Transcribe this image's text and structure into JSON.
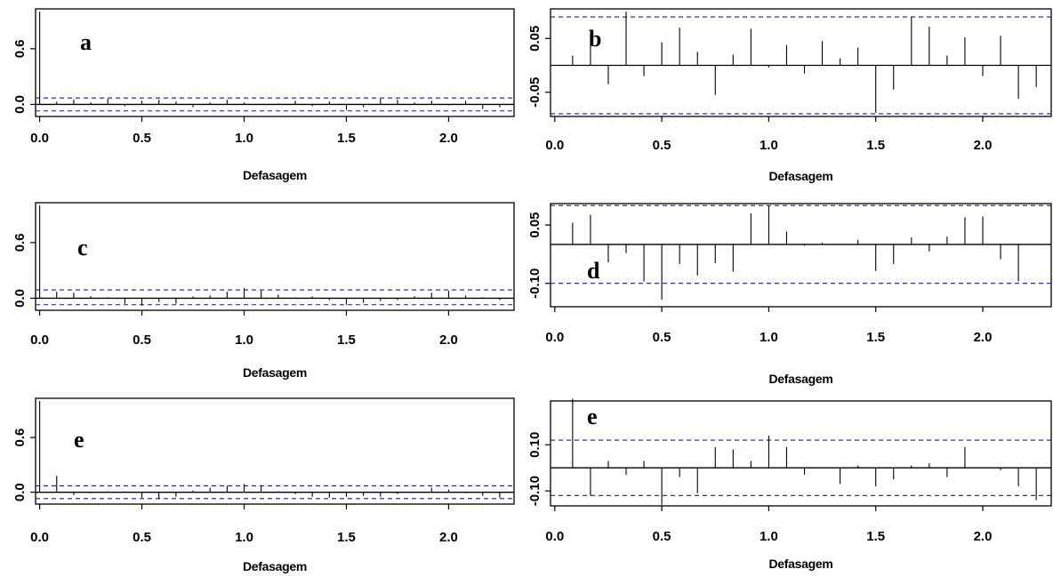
{
  "chart_data": [
    {
      "type": "bar",
      "panel_letter": "a",
      "xlabel": "Defasagem",
      "xlim": [
        -0.02,
        2.32
      ],
      "ylim": [
        -0.13,
        1.03
      ],
      "xticks": [
        0.0,
        0.5,
        1.0,
        1.5,
        2.0
      ],
      "xtick_labels": [
        "0.0",
        "0.5",
        "1.0",
        "1.5",
        "2.0"
      ],
      "yticks": [
        0.0,
        0.6
      ],
      "ytick_labels": [
        "0.0",
        "0.6"
      ],
      "conf_band": [
        0.07,
        -0.07
      ],
      "x": [
        0,
        0.0833,
        0.1667,
        0.25,
        0.3333,
        0.4167,
        0.5,
        0.5833,
        0.6667,
        0.75,
        0.8333,
        0.9167,
        1.0,
        1.0833,
        1.1667,
        1.25,
        1.3333,
        1.4167,
        1.5,
        1.5833,
        1.6667,
        1.75,
        1.8333,
        1.9167,
        2.0,
        2.0833,
        2.1667,
        2.25
      ],
      "values": [
        1.0,
        0.03,
        0.05,
        0.02,
        0.06,
        -0.02,
        0.04,
        0.05,
        0.03,
        -0.03,
        0.02,
        0.05,
        0.02,
        0.0,
        0.01,
        0.04,
        -0.02,
        0.03,
        -0.06,
        -0.03,
        0.06,
        0.05,
        0.02,
        0.04,
        -0.01,
        0.04,
        -0.05,
        -0.03
      ]
    },
    {
      "type": "bar",
      "panel_letter": "b",
      "xlabel": "Defasagem",
      "xlim": [
        -0.02,
        2.32
      ],
      "ylim": [
        -0.095,
        0.105
      ],
      "xticks": [
        0.0,
        0.5,
        1.0,
        1.5,
        2.0
      ],
      "xtick_labels": [
        "0.0",
        "0.5",
        "1.0",
        "1.5",
        "2.0"
      ],
      "yticks": [
        -0.05,
        0.05
      ],
      "ytick_labels": [
        "-0.05",
        "0.05"
      ],
      "conf_band": [
        0.09,
        -0.09
      ],
      "x": [
        0.0833,
        0.1667,
        0.25,
        0.3333,
        0.4167,
        0.5,
        0.5833,
        0.6667,
        0.75,
        0.8333,
        0.9167,
        1.0,
        1.0833,
        1.1667,
        1.25,
        1.3333,
        1.4167,
        1.5,
        1.5833,
        1.6667,
        1.75,
        1.8333,
        1.9167,
        2.0,
        2.0833,
        2.1667,
        2.25
      ],
      "values": [
        0.018,
        0.057,
        -0.035,
        0.1,
        -0.02,
        0.043,
        0.07,
        0.025,
        -0.055,
        0.02,
        0.068,
        -0.004,
        0.038,
        -0.015,
        0.045,
        0.013,
        0.033,
        -0.088,
        -0.045,
        0.09,
        0.072,
        0.018,
        0.052,
        -0.02,
        0.055,
        -0.062,
        -0.04
      ]
    },
    {
      "type": "bar",
      "panel_letter": "c",
      "xlabel": "Defasagem",
      "xlim": [
        -0.02,
        2.32
      ],
      "ylim": [
        -0.13,
        1.03
      ],
      "xticks": [
        0.0,
        0.5,
        1.0,
        1.5,
        2.0
      ],
      "xtick_labels": [
        "0.0",
        "0.5",
        "1.0",
        "1.5",
        "2.0"
      ],
      "yticks": [
        0.0,
        0.6
      ],
      "ytick_labels": [
        "0.0",
        "0.6"
      ],
      "conf_band": [
        0.09,
        -0.07
      ],
      "x": [
        0,
        0.0833,
        0.1667,
        0.25,
        0.3333,
        0.4167,
        0.5,
        0.5833,
        0.6667,
        0.75,
        0.8333,
        0.9167,
        1.0,
        1.0833,
        1.1667,
        1.25,
        1.3333,
        1.4167,
        1.5,
        1.5833,
        1.6667,
        1.75,
        1.8333,
        1.9167,
        2.0,
        2.0833,
        2.1667,
        2.25
      ],
      "values": [
        1.0,
        0.07,
        0.06,
        0.02,
        0.01,
        -0.06,
        -0.08,
        -0.04,
        -0.06,
        0.02,
        0.03,
        0.07,
        0.11,
        0.08,
        0.04,
        0.01,
        0.02,
        -0.02,
        -0.07,
        -0.05,
        -0.03,
        -0.02,
        0.02,
        0.06,
        0.08,
        0.03,
        0.01,
        -0.02
      ]
    },
    {
      "type": "bar",
      "panel_letter": "d",
      "xlabel": "Defasagem",
      "xlim": [
        -0.02,
        2.32
      ],
      "ylim": [
        -0.16,
        0.105
      ],
      "xticks": [
        0.0,
        0.5,
        1.0,
        1.5,
        2.0
      ],
      "xtick_labels": [
        "0.0",
        "0.5",
        "1.0",
        "1.5",
        "2.0"
      ],
      "yticks": [
        -0.1,
        0.05
      ],
      "ytick_labels": [
        "-0.10",
        "0.05"
      ],
      "conf_band": [
        0.1,
        -0.1
      ],
      "x": [
        0.0833,
        0.1667,
        0.25,
        0.3333,
        0.4167,
        0.5,
        0.5833,
        0.6667,
        0.75,
        0.8333,
        0.9167,
        1.0,
        1.0833,
        1.1667,
        1.25,
        1.3333,
        1.4167,
        1.5,
        1.5833,
        1.6667,
        1.75,
        1.8333,
        1.9167,
        2.0,
        2.0833,
        2.1667
      ],
      "values": [
        0.056,
        0.076,
        -0.046,
        -0.022,
        -0.095,
        -0.142,
        -0.05,
        -0.08,
        -0.048,
        -0.07,
        0.08,
        0.1,
        0.033,
        -0.003,
        0.004,
        0.0,
        0.012,
        -0.068,
        -0.05,
        0.018,
        -0.018,
        0.02,
        0.07,
        0.072,
        -0.038,
        -0.095
      ]
    },
    {
      "type": "bar",
      "panel_letter": "e",
      "xlabel": "Defasagem",
      "xlim": [
        -0.02,
        2.32
      ],
      "ylim": [
        -0.13,
        1.03
      ],
      "xticks": [
        0.0,
        0.5,
        1.0,
        1.5,
        2.0
      ],
      "xtick_labels": [
        "0.0",
        "0.5",
        "1.0",
        "1.5",
        "2.0"
      ],
      "yticks": [
        0.0,
        0.6
      ],
      "ytick_labels": [
        "0.0",
        "0.6"
      ],
      "conf_band": [
        0.07,
        -0.07
      ],
      "x": [
        0,
        0.0833,
        0.1667,
        0.25,
        0.3333,
        0.4167,
        0.5,
        0.5833,
        0.6667,
        0.75,
        0.8333,
        0.9167,
        1.0,
        1.0833,
        1.1667,
        1.25,
        1.3333,
        1.4167,
        1.5,
        1.5833,
        1.6667,
        1.75,
        1.8333,
        1.9167,
        2.0,
        2.0833,
        2.1667,
        2.25
      ],
      "values": [
        1.0,
        0.18,
        -0.03,
        -0.01,
        0.01,
        0.01,
        -0.06,
        -0.07,
        -0.05,
        0.02,
        0.05,
        0.07,
        0.09,
        0.07,
        0.01,
        -0.02,
        -0.05,
        -0.06,
        -0.05,
        -0.04,
        -0.05,
        -0.02,
        0.0,
        0.05,
        0.03,
        -0.01,
        -0.04,
        -0.06
      ]
    },
    {
      "type": "bar",
      "panel_letter": "e",
      "xlabel": "Defasagem",
      "xlim": [
        -0.02,
        2.32
      ],
      "ylim": [
        -0.165,
        0.29
      ],
      "xticks": [
        0.0,
        0.5,
        1.0,
        1.5,
        2.0
      ],
      "xtick_labels": [
        "0.0",
        "0.5",
        "1.0",
        "1.5",
        "2.0"
      ],
      "yticks": [
        -0.1,
        0.1
      ],
      "ytick_labels": [
        "-0.10",
        "0.10"
      ],
      "conf_band": [
        0.12,
        -0.12
      ],
      "x": [
        0.0833,
        0.1667,
        0.25,
        0.3333,
        0.4167,
        0.5,
        0.5833,
        0.6667,
        0.75,
        0.8333,
        0.9167,
        1.0,
        1.0833,
        1.1667,
        1.25,
        1.3333,
        1.4167,
        1.5,
        1.5833,
        1.6667,
        1.75,
        1.8333,
        1.9167,
        2.0,
        2.0833,
        2.1667,
        2.25
      ],
      "values": [
        0.3,
        -0.12,
        0.03,
        -0.03,
        0.03,
        -0.16,
        -0.04,
        -0.11,
        0.09,
        0.08,
        0.03,
        0.14,
        0.09,
        -0.03,
        0.0,
        -0.07,
        0.01,
        -0.08,
        -0.05,
        0.01,
        0.02,
        -0.04,
        0.09,
        0.0,
        -0.01,
        -0.08,
        -0.14
      ]
    }
  ]
}
